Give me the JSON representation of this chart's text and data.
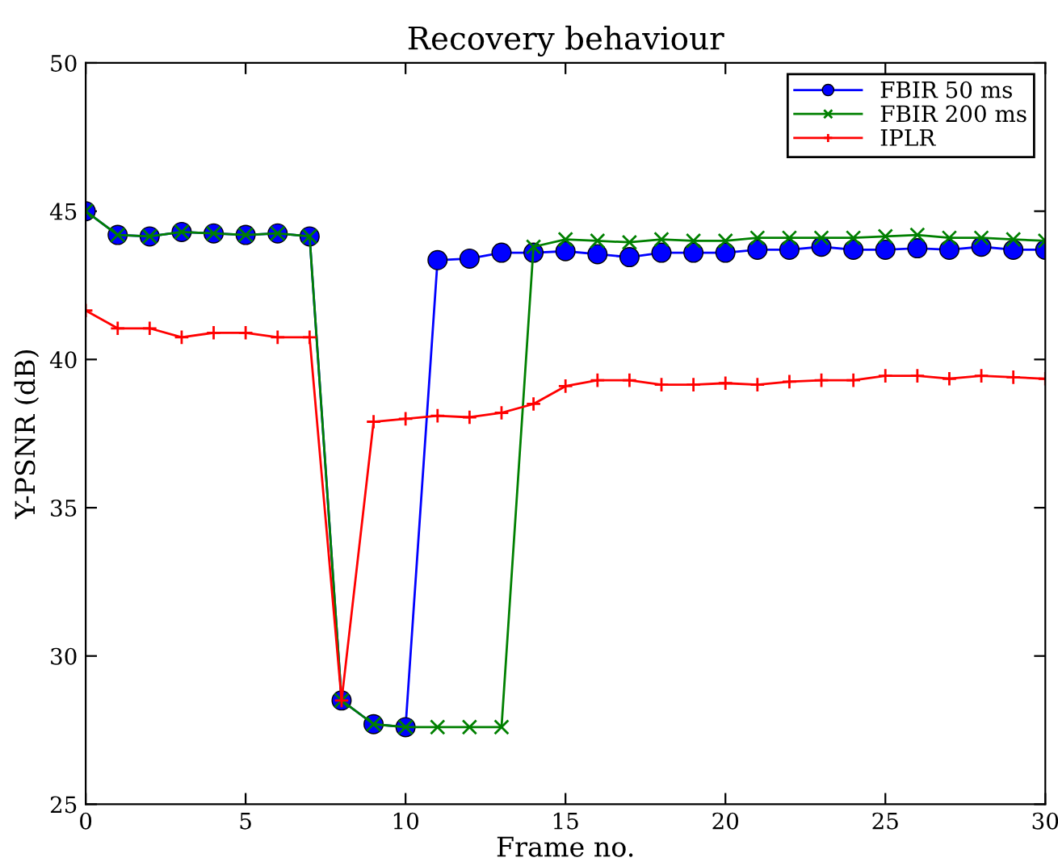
{
  "chart_data": {
    "type": "line",
    "title": "Recovery behaviour",
    "xlabel": "Frame no.",
    "ylabel": "Y-PSNR (dB)",
    "x": [
      0,
      1,
      2,
      3,
      4,
      5,
      6,
      7,
      8,
      9,
      10,
      11,
      12,
      13,
      14,
      15,
      16,
      17,
      18,
      19,
      20,
      21,
      22,
      23,
      24,
      25,
      26,
      27,
      28,
      29,
      30
    ],
    "xlim": [
      0,
      30
    ],
    "xticks": [
      0,
      5,
      10,
      15,
      20,
      25,
      30
    ],
    "ylim": [
      25,
      50
    ],
    "yticks": [
      25,
      30,
      35,
      40,
      45,
      50
    ],
    "grid": false,
    "legend": "top right",
    "series": [
      {
        "name": "FBIR 50 ms",
        "color": "#0000ff",
        "marker": "circle",
        "values": [
          45,
          44.2,
          44.15,
          44.3,
          44.25,
          44.2,
          44.25,
          44.15,
          28.5,
          27.7,
          27.6,
          43.35,
          43.4,
          43.6,
          43.6,
          43.65,
          43.55,
          43.45,
          43.6,
          43.6,
          43.6,
          43.7,
          43.7,
          43.8,
          43.7,
          43.7,
          43.75,
          43.7,
          43.8,
          43.7,
          43.7
        ]
      },
      {
        "name": "FBIR 200 ms",
        "color": "#008000",
        "marker": "cross",
        "values": [
          45,
          44.2,
          44.15,
          44.3,
          44.25,
          44.2,
          44.25,
          44.15,
          28.5,
          27.7,
          27.6,
          27.6,
          27.6,
          27.6,
          43.8,
          44.05,
          44.0,
          43.95,
          44.05,
          44.0,
          44.0,
          44.1,
          44.1,
          44.1,
          44.1,
          44.15,
          44.2,
          44.1,
          44.1,
          44.05,
          44.0
        ]
      },
      {
        "name": "IPLR",
        "color": "#ff0000",
        "marker": "plus",
        "values": [
          41.65,
          41.05,
          41.05,
          40.75,
          40.9,
          40.9,
          40.75,
          40.75,
          28.5,
          37.9,
          38.0,
          38.1,
          38.05,
          38.2,
          38.5,
          39.1,
          39.3,
          39.3,
          39.15,
          39.15,
          39.2,
          39.15,
          39.25,
          39.3,
          39.3,
          39.45,
          39.45,
          39.35,
          39.45,
          39.4,
          39.35
        ]
      }
    ]
  }
}
